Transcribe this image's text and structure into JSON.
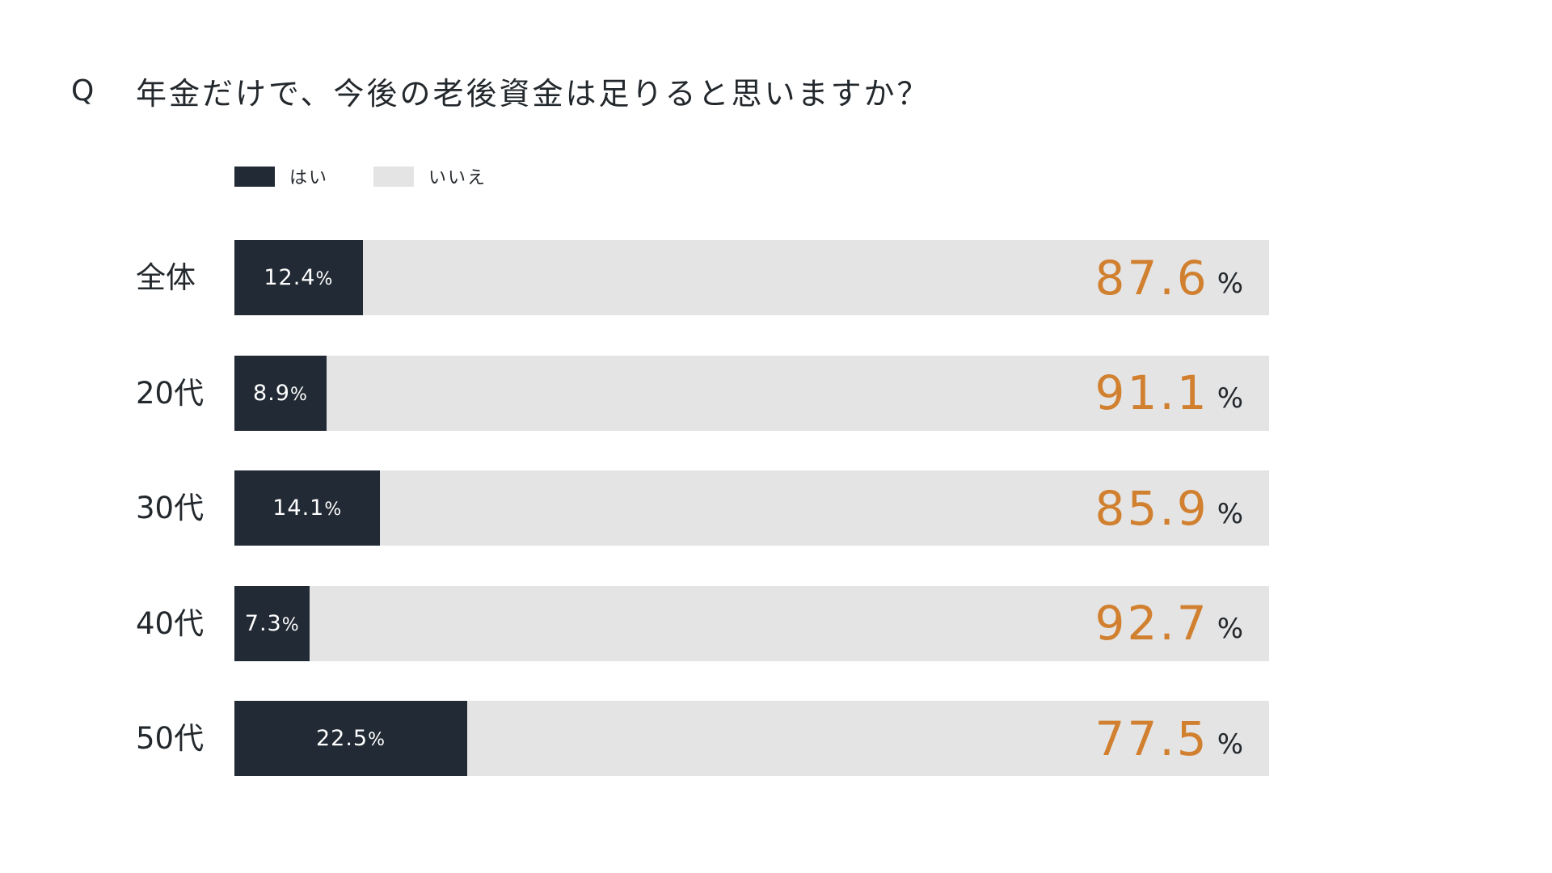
{
  "question": {
    "mark": "Q",
    "text": "年金だけで、今後の老後資金は足りると思いますか？"
  },
  "colors": {
    "yes": "#222a35",
    "no": "#e4e4e4",
    "no_value_text": "#d1802f",
    "text": "#23282d"
  },
  "chart_data": {
    "type": "bar",
    "orientation": "horizontal-stacked-100",
    "title": "年金だけで、今後の老後資金は足りると思いますか？",
    "unit": "%",
    "legend_placement": "top-left",
    "categories": [
      "全体",
      "20代",
      "30代",
      "40代",
      "50代"
    ],
    "series": [
      {
        "name": "はい",
        "values": [
          12.4,
          8.9,
          14.1,
          7.3,
          22.5
        ],
        "labels": [
          "12.4",
          "8.9",
          "14.1",
          "7.3",
          "22.5"
        ]
      },
      {
        "name": "いいえ",
        "values": [
          87.6,
          91.1,
          85.9,
          92.7,
          77.5
        ],
        "labels": [
          "87.6",
          "91.1",
          "85.9",
          "92.7",
          "77.5"
        ]
      }
    ],
    "xlim": [
      0,
      100
    ]
  }
}
